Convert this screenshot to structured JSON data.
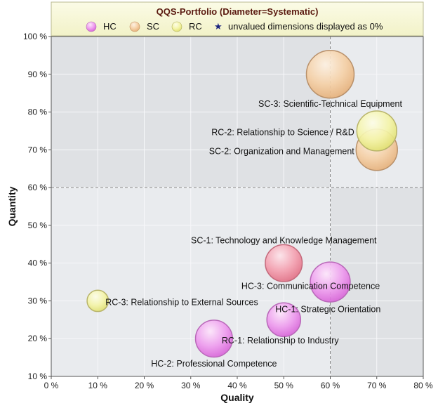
{
  "chart_data": {
    "type": "bubble",
    "title": "QQS-Portfolio (Diameter=Systematic)",
    "xlabel": "Quality",
    "ylabel": "Quantity",
    "xlim": [
      0,
      80
    ],
    "ylim": [
      10,
      100
    ],
    "xticks": [
      0,
      10,
      20,
      30,
      40,
      50,
      60,
      70,
      80
    ],
    "yticks": [
      10,
      20,
      30,
      40,
      50,
      60,
      70,
      80,
      90,
      100
    ],
    "tick_suffix": " %",
    "thresholds": {
      "x": 60,
      "y": 60
    },
    "legend": {
      "items": [
        {
          "key": "HC",
          "label": "HC",
          "color": "#e68ce6"
        },
        {
          "key": "SC",
          "label": "SC",
          "color": "#f2c89a"
        },
        {
          "key": "RC",
          "label": "RC",
          "color": "#f0f08c"
        }
      ],
      "note_symbol": "★",
      "note": "unvalued dimensions displayed as 0%"
    },
    "bubbles": [
      {
        "id": "sc-3",
        "group": "SC",
        "label": "SC-3: Scientific-Technical Equipment",
        "x": 60,
        "y": 90,
        "size": 100
      },
      {
        "id": "rc-2",
        "group": "RC",
        "label": "RC-2: Relationship to Science / R&D",
        "x": 70,
        "y": 75,
        "size": 70
      },
      {
        "id": "sc-2",
        "group": "SC",
        "label": "SC-2: Organization and Management",
        "x": 70,
        "y": 70,
        "size": 75
      },
      {
        "id": "sc-1",
        "group": "SC",
        "label": "SC-1: Technology and Knowledge Management",
        "x": 50,
        "y": 40,
        "size": 60
      },
      {
        "id": "hc-3",
        "group": "HC",
        "label": "HC-3: Communication Competence",
        "x": 60,
        "y": 35,
        "size": 70
      },
      {
        "id": "rc-3",
        "group": "RC",
        "label": "RC-3: Relationship to External Sources",
        "x": 10,
        "y": 30,
        "size": 20
      },
      {
        "id": "hc-1",
        "group": "HC",
        "label": "HC-1: Strategic Orientation",
        "x": 50,
        "y": 25,
        "size": 50
      },
      {
        "id": "rc-1",
        "group": "RC",
        "label": "RC-1: Relationship to Industry",
        "x": 35,
        "y": 20,
        "size": 60
      },
      {
        "id": "hc-2",
        "group": "HC",
        "label": "HC-2: Professional Competence",
        "x": 35,
        "y": 20,
        "size": 60
      }
    ]
  }
}
